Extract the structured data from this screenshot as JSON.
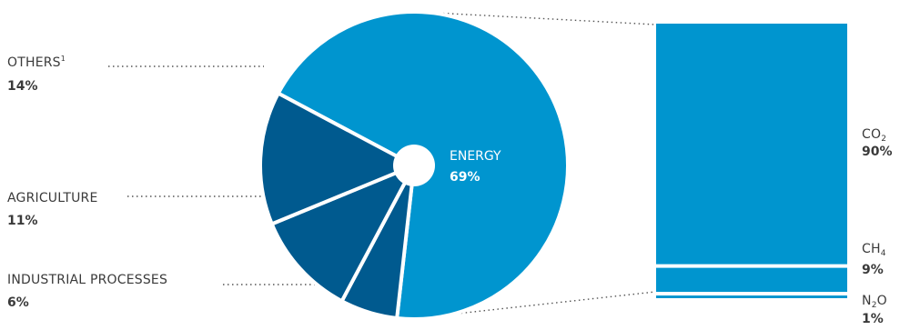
{
  "colors": {
    "energy": "#0095cf",
    "others_dark": "#005a8f",
    "bar": "#0095cf",
    "separator": "#ffffff",
    "text": "#3a3a3a"
  },
  "chart_data": [
    {
      "type": "pie",
      "slices": [
        {
          "label": "ENERGY",
          "value_label": "69%",
          "value": 69
        },
        {
          "label": "INDUSTRIAL PROCESSES",
          "value_label": "6%",
          "value": 6
        },
        {
          "label": "AGRICULTURE",
          "value_label": "11%",
          "value": 11
        },
        {
          "label": "OTHERS",
          "label_superscript": "1",
          "value_label": "14%",
          "value": 14
        }
      ]
    },
    {
      "type": "bar",
      "stacked": true,
      "segments": [
        {
          "label_main": "CO",
          "label_sub": "2",
          "label_tail": "",
          "value_label": "90%",
          "value": 90
        },
        {
          "label_main": "CH",
          "label_sub": "4",
          "label_tail": "",
          "value_label": "9%",
          "value": 9
        },
        {
          "label_main": "N",
          "label_sub": "2",
          "label_tail": "O",
          "value_label": "1%",
          "value": 1
        }
      ]
    }
  ]
}
